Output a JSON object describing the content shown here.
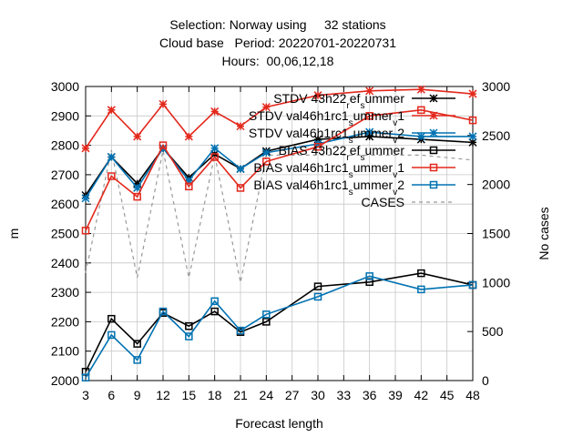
{
  "chart_data": {
    "type": "line",
    "title_lines": [
      "Selection: Norway using     32 stations",
      "Cloud base   Period: 20220701-20220731",
      "Hours:  00,06,12,18"
    ],
    "xlabel": "Forecast length",
    "ylabel": "m",
    "y2label": "No cases",
    "xlim": [
      3,
      48
    ],
    "ylim": [
      2000,
      3000
    ],
    "y2lim": [
      0,
      3000
    ],
    "x_ticks": [
      "3",
      "6",
      "9",
      "12",
      "15",
      "18",
      "21",
      "24",
      "27",
      "30",
      "33",
      "36",
      "39",
      "42",
      "45",
      "48"
    ],
    "y_ticks": [
      "2000",
      "2100",
      "2200",
      "2300",
      "2400",
      "2500",
      "2600",
      "2700",
      "2800",
      "2900",
      "3000"
    ],
    "y2_ticks": [
      "0",
      "500",
      "1000",
      "1500",
      "2000",
      "2500",
      "3000"
    ],
    "legend_position": "top-right",
    "series": [
      {
        "legend": [
          "STDV 43h22",
          "r",
          "ef",
          "s",
          "ummer"
        ],
        "color": "#000000",
        "marker": "star",
        "dash": "",
        "axis": "y1",
        "x": [
          3,
          6,
          9,
          12,
          15,
          18,
          21,
          24,
          30,
          36,
          42,
          48
        ],
        "y": [
          2630,
          2760,
          2670,
          2790,
          2690,
          2770,
          2720,
          2780,
          2820,
          2830,
          2820,
          2810
        ]
      },
      {
        "legend": [
          "STDV val46h1rc1",
          "s",
          "ummer",
          "v",
          "1"
        ],
        "color": "#e3281c",
        "marker": "star",
        "dash": "",
        "axis": "y1",
        "x": [
          3,
          6,
          9,
          12,
          15,
          18,
          21,
          24,
          30,
          36,
          42,
          48
        ],
        "y": [
          2790,
          2920,
          2830,
          2940,
          2830,
          2915,
          2865,
          2930,
          2970,
          2985,
          2990,
          2975
        ]
      },
      {
        "legend": [
          "STDV val46h1rc1",
          "s",
          "ummer",
          "v",
          "2"
        ],
        "color": "#0072b2",
        "marker": "star",
        "dash": "",
        "axis": "y1",
        "x": [
          3,
          6,
          9,
          12,
          15,
          18,
          21,
          24,
          30,
          36,
          42,
          48
        ],
        "y": [
          2620,
          2760,
          2655,
          2790,
          2680,
          2790,
          2720,
          2775,
          2805,
          2845,
          2830,
          2830
        ]
      },
      {
        "legend": [
          "BIAS 43h22",
          "r",
          "ef",
          "s",
          "ummer"
        ],
        "color": "#000000",
        "marker": "square",
        "dash": "",
        "axis": "y1",
        "x": [
          3,
          6,
          9,
          12,
          15,
          18,
          21,
          24,
          30,
          36,
          42,
          48
        ],
        "y": [
          2030,
          2210,
          2125,
          2230,
          2185,
          2235,
          2165,
          2200,
          2320,
          2335,
          2365,
          2325
        ]
      },
      {
        "legend": [
          "BIAS val46h1rc1",
          "s",
          "ummer",
          "v",
          "1"
        ],
        "color": "#e3281c",
        "marker": "square",
        "dash": "",
        "axis": "y1",
        "x": [
          3,
          6,
          9,
          12,
          15,
          18,
          21,
          24,
          30,
          36,
          42,
          48
        ],
        "y": [
          2510,
          2695,
          2625,
          2800,
          2660,
          2760,
          2655,
          2745,
          2795,
          2900,
          2920,
          2885
        ]
      },
      {
        "legend": [
          "BIAS val46h1rc1",
          "s",
          "ummer",
          "v",
          "2"
        ],
        "color": "#0072b2",
        "marker": "square",
        "dash": "",
        "axis": "y1",
        "x": [
          3,
          6,
          9,
          12,
          15,
          18,
          21,
          24,
          30,
          36,
          42,
          48
        ],
        "y": [
          2010,
          2155,
          2070,
          2235,
          2150,
          2270,
          2170,
          2225,
          2285,
          2355,
          2310,
          2325
        ]
      },
      {
        "legend": [
          "CASES"
        ],
        "color": "#999999",
        "marker": "none",
        "dash": "4,4",
        "axis": "y2",
        "x": [
          3,
          6,
          9,
          12,
          15,
          18,
          21,
          24,
          30,
          36,
          42,
          48
        ],
        "y": [
          1100,
          2350,
          1050,
          2350,
          1050,
          2300,
          1000,
          2300,
          2300,
          2300,
          2300,
          2250
        ]
      }
    ]
  }
}
